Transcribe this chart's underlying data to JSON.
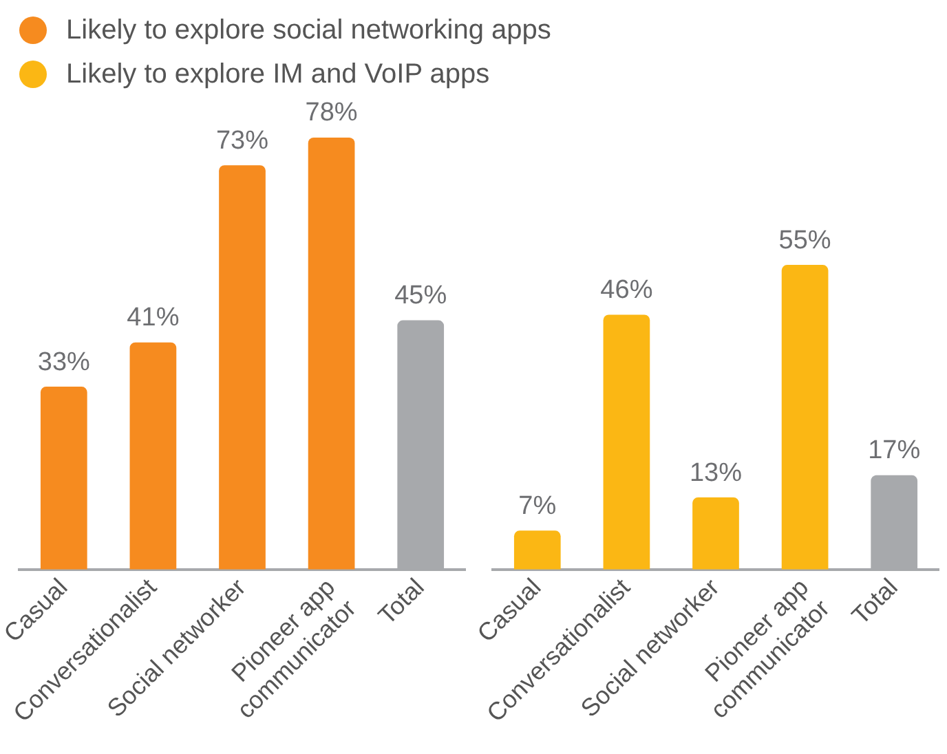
{
  "chart_data": [
    {
      "type": "bar",
      "categories": [
        "Casual",
        "Conversationalist",
        "Social networker",
        "Pioneer app\ncommunicator",
        "Total"
      ],
      "series": [
        {
          "name": "Likely to explore social networking apps",
          "color": "#f68b1f",
          "colors": [
            "#f68b1f",
            "#f68b1f",
            "#f68b1f",
            "#f68b1f",
            "#a7a9ac"
          ],
          "values": [
            33,
            41,
            73,
            78,
            45
          ],
          "value_labels": [
            "33%",
            "41%",
            "73%",
            "78%",
            "45%"
          ]
        }
      ],
      "grid": false,
      "legend": "top",
      "tick_labels": "x"
    },
    {
      "type": "bar",
      "categories": [
        "Casual",
        "Conversationalist",
        "Social networker",
        "Pioneer app\ncommunicator",
        "Total"
      ],
      "series": [
        {
          "name": "Likely to explore IM and VoIP apps",
          "color": "#fbb714",
          "colors": [
            "#fbb714",
            "#fbb714",
            "#fbb714",
            "#fbb714",
            "#a7a9ac"
          ],
          "values": [
            7,
            46,
            13,
            55,
            17
          ],
          "value_labels": [
            "7%",
            "46%",
            "13%",
            "55%",
            "17%"
          ]
        }
      ],
      "grid": false,
      "legend": "top",
      "tick_labels": "x"
    }
  ]
}
